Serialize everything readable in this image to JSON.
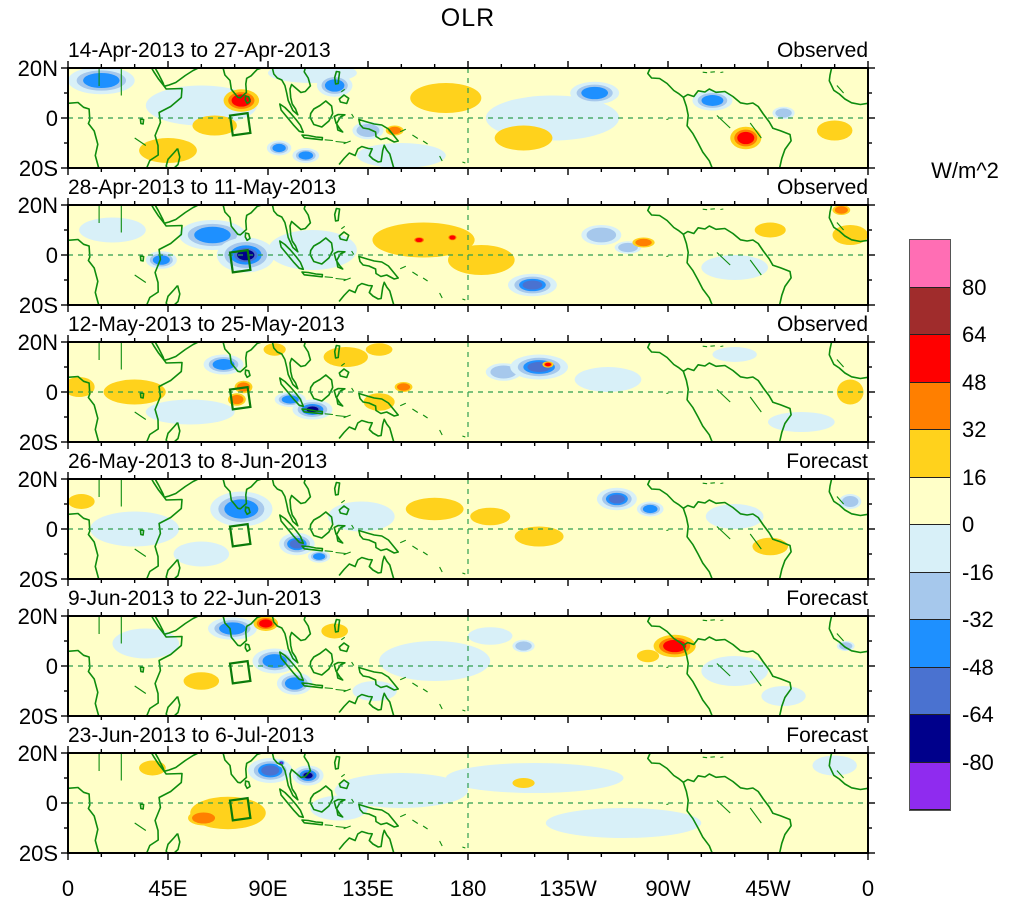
{
  "title": "OLR",
  "colorbar": {
    "unit_label": "W/m^2",
    "tick_values": [
      80,
      64,
      48,
      32,
      16,
      0,
      -16,
      -32,
      -48,
      -64,
      -80
    ],
    "colors_top_to_bottom": [
      "#FF6EB4",
      "#A02C2C",
      "#FF0000",
      "#FF7F00",
      "#FFD21C",
      "#FFFFC8",
      "#D8F0F8",
      "#A6C8EC",
      "#1E90FF",
      "#4A72D0",
      "#00008B",
      "#8F2BEF"
    ]
  },
  "x_axis": {
    "tick_labels": [
      "0",
      "45E",
      "90E",
      "135E",
      "180",
      "135W",
      "90W",
      "45W",
      "0"
    ]
  },
  "y_axis": {
    "tick_labels": [
      "20N",
      "0",
      "20S"
    ]
  },
  "chart_data": {
    "type": "heatmap",
    "variable": "OLR anomaly (filled contours over tropical strip map)",
    "unit": "W/m^2",
    "contour_levels": [
      -80,
      -64,
      -48,
      -32,
      -16,
      0,
      16,
      32,
      48,
      64,
      80
    ],
    "lon_domain_deg_east": [
      0,
      360
    ],
    "lat_domain_deg": [
      -20,
      20
    ],
    "grid": "dashed green equator line and dashed green 180-deg meridian",
    "region_box": {
      "lon_min": 73.5,
      "lon_max": 81.5,
      "lat_min": -6.5,
      "lat_max": 1.5
    },
    "panels": [
      {
        "period": "14-Apr-2013 to 27-Apr-2013",
        "status": "Observed",
        "blobs": [
          [
            60,
            5,
            50,
            16,
            -8
          ],
          [
            150,
            -15,
            40,
            10,
            -8
          ],
          [
            218,
            0,
            60,
            18,
            -8
          ],
          [
            110,
            18,
            40,
            8,
            -8
          ],
          [
            15,
            15,
            30,
            11,
            -38
          ],
          [
            45,
            -13,
            26,
            10,
            22
          ],
          [
            78,
            7,
            16,
            9,
            54
          ],
          [
            66,
            -3,
            20,
            8,
            20
          ],
          [
            95,
            -12,
            11,
            6,
            -40
          ],
          [
            107,
            -15,
            12,
            6,
            -38
          ],
          [
            120,
            13,
            16,
            9,
            -40
          ],
          [
            135,
            -5,
            14,
            7,
            -20
          ],
          [
            147,
            -5,
            8,
            4,
            38
          ],
          [
            170,
            8,
            32,
            12,
            24
          ],
          [
            205,
            -8,
            26,
            10,
            22
          ],
          [
            237,
            10,
            22,
            9,
            -40
          ],
          [
            290,
            7,
            18,
            8,
            -36
          ],
          [
            305,
            -8,
            14,
            9,
            52
          ],
          [
            322,
            2,
            10,
            5,
            -20
          ],
          [
            345,
            -5,
            16,
            8,
            22
          ]
        ]
      },
      {
        "period": "28-Apr-2013 to 11-May-2013",
        "status": "Observed",
        "blobs": [
          [
            110,
            2,
            40,
            16,
            -12
          ],
          [
            300,
            -5,
            30,
            10,
            -8
          ],
          [
            20,
            10,
            30,
            10,
            -8
          ],
          [
            80,
            0,
            26,
            14,
            -76
          ],
          [
            65,
            8,
            30,
            12,
            -40
          ],
          [
            42,
            -2,
            14,
            7,
            -36
          ],
          [
            160,
            6,
            46,
            14,
            24
          ],
          [
            158,
            6,
            6,
            3,
            50
          ],
          [
            173,
            7,
            5,
            3,
            50
          ],
          [
            186,
            -2,
            30,
            12,
            24
          ],
          [
            209,
            -12,
            22,
            9,
            -54
          ],
          [
            240,
            8,
            18,
            8,
            -24
          ],
          [
            252,
            3,
            12,
            5,
            -20
          ],
          [
            259,
            5,
            10,
            4,
            40
          ],
          [
            316,
            10,
            14,
            6,
            22
          ],
          [
            352,
            8,
            16,
            8,
            24
          ],
          [
            348,
            18,
            8,
            4,
            38
          ]
        ]
      },
      {
        "period": "12-May-2013 to 25-May-2013",
        "status": "Observed",
        "blobs": [
          [
            55,
            -8,
            40,
            10,
            -12
          ],
          [
            243,
            5,
            30,
            10,
            -10
          ],
          [
            300,
            15,
            20,
            6,
            -8
          ],
          [
            330,
            -12,
            30,
            8,
            -8
          ],
          [
            70,
            11,
            18,
            8,
            -44
          ],
          [
            79,
            2,
            8,
            5,
            40
          ],
          [
            76,
            -3,
            8,
            5,
            40
          ],
          [
            30,
            0,
            28,
            10,
            22
          ],
          [
            5,
            2,
            14,
            8,
            22
          ],
          [
            110,
            -7,
            18,
            8,
            -68
          ],
          [
            100,
            -3,
            14,
            6,
            -40
          ],
          [
            125,
            14,
            20,
            8,
            22
          ],
          [
            140,
            17,
            12,
            5,
            22
          ],
          [
            93,
            17,
            10,
            5,
            22
          ],
          [
            140,
            -4,
            14,
            7,
            24
          ],
          [
            151,
            2,
            8,
            4,
            38
          ],
          [
            212,
            10,
            26,
            10,
            -52
          ],
          [
            216,
            11,
            5,
            2.5,
            60
          ],
          [
            196,
            8,
            16,
            7,
            -24
          ],
          [
            352,
            0,
            12,
            10,
            22
          ]
        ]
      },
      {
        "period": "26-May-2013 to 8-Jun-2013",
        "status": "Forecast",
        "blobs": [
          [
            60,
            -10,
            25,
            10,
            -12
          ],
          [
            132,
            5,
            30,
            12,
            -12
          ],
          [
            300,
            5,
            26,
            10,
            -10
          ],
          [
            30,
            0,
            40,
            14,
            -8
          ],
          [
            78,
            8,
            28,
            14,
            -44
          ],
          [
            6,
            11,
            12,
            6,
            22
          ],
          [
            103,
            -6,
            16,
            9,
            -56
          ],
          [
            113,
            -11,
            10,
            5,
            -38
          ],
          [
            165,
            8,
            26,
            9,
            22
          ],
          [
            190,
            5,
            18,
            7,
            22
          ],
          [
            212,
            -3,
            22,
            8,
            22
          ],
          [
            247,
            12,
            18,
            9,
            -54
          ],
          [
            262,
            8,
            12,
            6,
            -36
          ],
          [
            316,
            -7,
            16,
            7,
            22
          ],
          [
            352,
            11,
            10,
            6,
            -20
          ]
        ]
      },
      {
        "period": "9-Jun-2013 to 22-Jun-2013",
        "status": "Forecast",
        "blobs": [
          [
            35,
            9,
            30,
            12,
            -10
          ],
          [
            138,
            -10,
            20,
            8,
            -12
          ],
          [
            165,
            2,
            50,
            16,
            -8
          ],
          [
            190,
            12,
            20,
            7,
            -12
          ],
          [
            322,
            -12,
            20,
            8,
            -10
          ],
          [
            300,
            -2,
            30,
            12,
            -8
          ],
          [
            74,
            15,
            22,
            9,
            -44
          ],
          [
            89,
            17,
            11,
            6,
            54
          ],
          [
            93,
            2,
            20,
            10,
            -44
          ],
          [
            102,
            -7,
            16,
            9,
            -44
          ],
          [
            60,
            -6,
            16,
            7,
            24
          ],
          [
            120,
            14,
            12,
            6,
            22
          ],
          [
            205,
            8,
            10,
            5,
            -20
          ],
          [
            273,
            8,
            19,
            9,
            56
          ],
          [
            261,
            4,
            10,
            5,
            22
          ],
          [
            350,
            8,
            8,
            4,
            -20
          ]
        ]
      },
      {
        "period": "23-Jun-2013 to 6-Jul-2013",
        "status": "Forecast",
        "blobs": [
          [
            122,
            -2,
            26,
            10,
            -12
          ],
          [
            150,
            5,
            60,
            14,
            -8
          ],
          [
            210,
            10,
            80,
            12,
            -8
          ],
          [
            250,
            -8,
            70,
            12,
            -8
          ],
          [
            345,
            15,
            20,
            8,
            -8
          ],
          [
            72,
            -4,
            34,
            13,
            26
          ],
          [
            61,
            -6,
            14,
            6,
            42
          ],
          [
            91,
            13,
            20,
            10,
            -62
          ],
          [
            108,
            11,
            14,
            8,
            -70
          ],
          [
            96,
            16,
            4,
            3,
            -84
          ],
          [
            205,
            8,
            10,
            4,
            22
          ],
          [
            38,
            14,
            12,
            6,
            22
          ]
        ]
      }
    ]
  }
}
